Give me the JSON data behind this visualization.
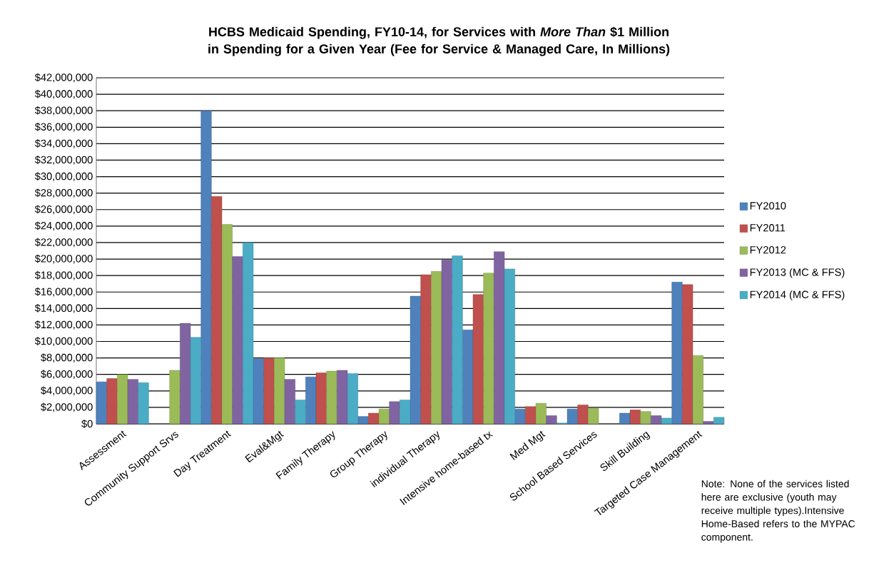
{
  "chart_data": {
    "type": "bar",
    "title": "HCBS Medicaid Spending, FY10-14, for Services with *More Than* $1 Million in Spending for a Given Year (Fee for Service & Managed Care, In Millions)",
    "categories": [
      "Assessment",
      "Community Support Srvs",
      "Day Treatment",
      "Eval&Mgt",
      "Family Therapy",
      "Group Therapy",
      "individual Therapy",
      "Intensive home-based tx",
      "Med Mgt",
      "School Based Services",
      "Skill Building",
      "Targeted Case Management"
    ],
    "series": [
      {
        "name": "FY2010",
        "color": "#4f81bd",
        "values": [
          5100000,
          null,
          38000000,
          7900000,
          5700000,
          900000,
          15500000,
          11400000,
          1800000,
          1800000,
          1300000,
          17200000
        ]
      },
      {
        "name": "FY2011",
        "color": "#c0504d",
        "values": [
          5500000,
          null,
          27600000,
          8000000,
          6200000,
          1300000,
          18100000,
          15700000,
          2100000,
          2300000,
          1700000,
          16900000
        ]
      },
      {
        "name": "FY2012",
        "color": "#9bbb59",
        "values": [
          6000000,
          6500000,
          24200000,
          8000000,
          6400000,
          1800000,
          18500000,
          18300000,
          2500000,
          1900000,
          1500000,
          8300000
        ]
      },
      {
        "name": "FY2013 (MC & FFS)",
        "color": "#8064a2",
        "values": [
          5400000,
          12200000,
          20300000,
          5400000,
          6500000,
          2700000,
          19900000,
          20900000,
          1000000,
          null,
          1000000,
          300000
        ]
      },
      {
        "name": "FY2014  (MC & FFS)",
        "color": "#4bacc6",
        "values": [
          5000000,
          10500000,
          22000000,
          2900000,
          6100000,
          2900000,
          20400000,
          18800000,
          100000,
          null,
          700000,
          800000
        ]
      }
    ],
    "ylim": [
      0,
      42000000
    ],
    "yticks": [
      {
        "value": 0,
        "label": "$0"
      },
      {
        "value": 2000000,
        "label": "$2,000,000"
      },
      {
        "value": 4000000,
        "label": "$4,000,000"
      },
      {
        "value": 6000000,
        "label": "$6,000,000"
      },
      {
        "value": 8000000,
        "label": "$8,000,000"
      },
      {
        "value": 10000000,
        "label": "$10,000,000"
      },
      {
        "value": 12000000,
        "label": "$12,000,000"
      },
      {
        "value": 14000000,
        "label": "$14,000,000"
      },
      {
        "value": 16000000,
        "label": "$16,000,000"
      },
      {
        "value": 18000000,
        "label": "$18,000,000"
      },
      {
        "value": 20000000,
        "label": "$20,000,000"
      },
      {
        "value": 22000000,
        "label": "$22,000,000"
      },
      {
        "value": 24000000,
        "label": "$24,000,000"
      },
      {
        "value": 26000000,
        "label": "$26,000,000"
      },
      {
        "value": 28000000,
        "label": "$28,000,000"
      },
      {
        "value": 30000000,
        "label": "$30,000,000"
      },
      {
        "value": 32000000,
        "label": "$32,000,000"
      },
      {
        "value": 34000000,
        "label": "$34,000,000"
      },
      {
        "value": 36000000,
        "label": "$36,000,000"
      },
      {
        "value": 38000000,
        "label": "$38,000,000"
      },
      {
        "value": 40000000,
        "label": "$40,000,000"
      },
      {
        "value": 42000000,
        "label": "$42,000,000"
      }
    ],
    "grid": "y",
    "legend": "right",
    "annotations": [
      "Note: None of the services listed here are exclusive (youth may receive multiple types).Intensive Home-Based refers to the MYPAC component."
    ]
  }
}
